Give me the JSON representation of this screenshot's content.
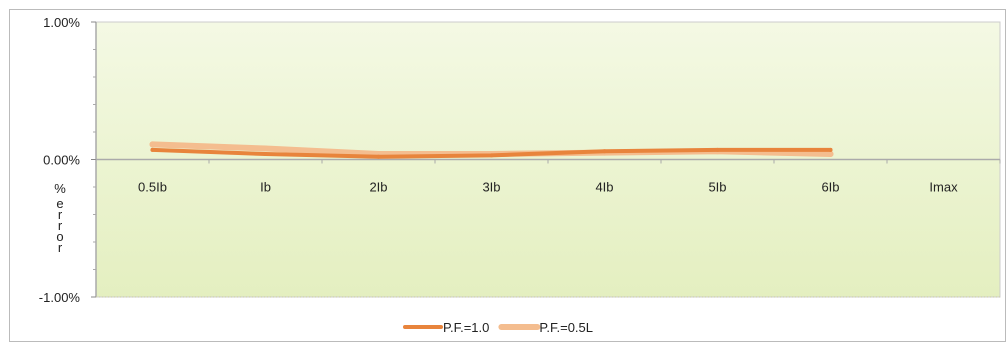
{
  "chart_data": {
    "type": "line",
    "title": "",
    "xlabel": "",
    "ylabel": "%\nerror",
    "categories": [
      "0.5Ib",
      "Ib",
      "2Ib",
      "3Ib",
      "4Ib",
      "5Ib",
      "6Ib",
      "Imax"
    ],
    "ylim": [
      -0.01,
      0.01
    ],
    "yticks": [
      "1.00%",
      "0.00%",
      "-1.00%"
    ],
    "grid": false,
    "legend_position": "bottom",
    "series": [
      {
        "name": "P.F.=1.0",
        "color": "#E8843C",
        "values": [
          0.0007,
          0.0004,
          0.0002,
          0.0003,
          0.0006,
          0.0007,
          0.0007,
          null
        ]
      },
      {
        "name": "P.F.=0.5L",
        "color": "#F4BD8F",
        "values": [
          0.0011,
          0.0008,
          0.0004,
          0.0004,
          0.0005,
          0.0006,
          0.0004,
          null
        ]
      }
    ],
    "plot_background": "#EEF5D4",
    "axis_color": "#AAAAAA"
  }
}
